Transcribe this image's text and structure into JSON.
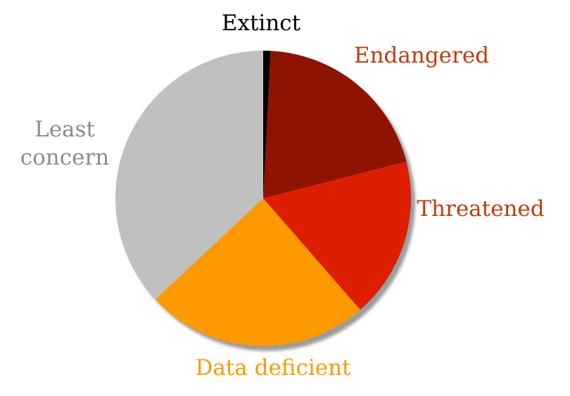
{
  "chart_data": {
    "type": "pie",
    "title": "",
    "categories": [
      "Extinct",
      "Endangered",
      "Threatened",
      "Data deficient",
      "Least concern"
    ],
    "values": [
      0.8,
      20.2,
      17.6,
      24.4,
      37.0
    ],
    "colors": [
      "#000000",
      "#8e1300",
      "#de1e00",
      "#ff9900",
      "#c0c0c0"
    ],
    "label_colors": [
      "#000000",
      "#c23b0b",
      "#c23b0b",
      "#ff9900",
      "#8c8c8c"
    ],
    "start_angle_deg": 0,
    "direction": "clockwise",
    "labels": [
      {
        "lines": [
          "Extinct"
        ]
      },
      {
        "lines": [
          "Endangered"
        ]
      },
      {
        "lines": [
          "Threatened"
        ]
      },
      {
        "lines": [
          "Data deficient"
        ]
      },
      {
        "lines": [
          "Least",
          "concern"
        ]
      }
    ],
    "legend": "none",
    "shadow": true
  }
}
